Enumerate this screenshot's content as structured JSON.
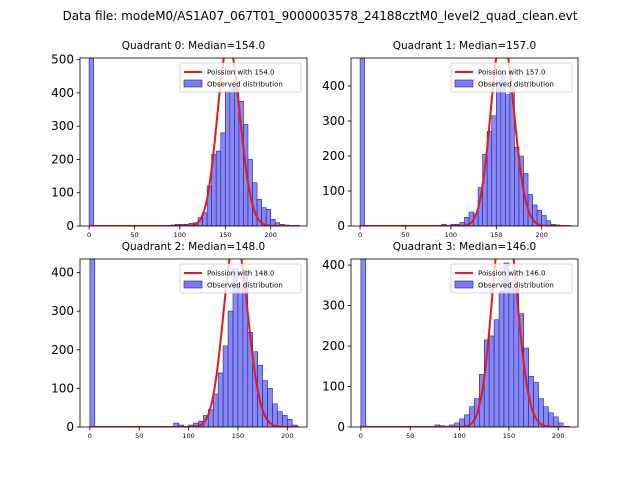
{
  "figure_title": "Data file: modeM0/AS1A07_067T01_9000003578_24188cztM0_level2_quad_clean.evt",
  "colors": {
    "bar_fill": "#7b7bf0",
    "bar_edge": "#1f1fa8",
    "poisson_line": "#e41a1c",
    "axis": "#000000"
  },
  "chart_data": [
    {
      "type": "bar",
      "title": "Quadrant 0: Median=154.0",
      "median": 154.0,
      "xlim": [
        -10,
        240
      ],
      "ylim": [
        0,
        505
      ],
      "xticks": [
        0,
        50,
        100,
        150,
        200
      ],
      "yticks": [
        0,
        100,
        200,
        300,
        400,
        500
      ],
      "legend": {
        "location": "top-right",
        "line_label": "Poission with 154.0",
        "bar_label": "Observed distribution"
      },
      "bin_width": 5,
      "bins": [
        {
          "x": 0,
          "y": 505
        },
        {
          "x": 85,
          "y": 2
        },
        {
          "x": 90,
          "y": 3
        },
        {
          "x": 95,
          "y": 5
        },
        {
          "x": 100,
          "y": 5
        },
        {
          "x": 105,
          "y": 5
        },
        {
          "x": 110,
          "y": 8
        },
        {
          "x": 115,
          "y": 10
        },
        {
          "x": 120,
          "y": 25
        },
        {
          "x": 125,
          "y": 40
        },
        {
          "x": 130,
          "y": 120
        },
        {
          "x": 135,
          "y": 215
        },
        {
          "x": 140,
          "y": 225
        },
        {
          "x": 145,
          "y": 280
        },
        {
          "x": 150,
          "y": 405
        },
        {
          "x": 155,
          "y": 420
        },
        {
          "x": 160,
          "y": 420
        },
        {
          "x": 165,
          "y": 375
        },
        {
          "x": 170,
          "y": 305
        },
        {
          "x": 175,
          "y": 200
        },
        {
          "x": 180,
          "y": 130
        },
        {
          "x": 185,
          "y": 80
        },
        {
          "x": 190,
          "y": 55
        },
        {
          "x": 195,
          "y": 50
        },
        {
          "x": 200,
          "y": 20
        },
        {
          "x": 205,
          "y": 10
        },
        {
          "x": 210,
          "y": 5
        },
        {
          "x": 215,
          "y": 3
        }
      ]
    },
    {
      "type": "bar",
      "title": "Quadrant 1: Median=157.0",
      "median": 157.0,
      "xlim": [
        -10,
        240
      ],
      "ylim": [
        0,
        480
      ],
      "xticks": [
        0,
        50,
        100,
        150,
        200
      ],
      "yticks": [
        0,
        100,
        200,
        300,
        400
      ],
      "legend": {
        "location": "top-right",
        "line_label": "Poission with 157.0",
        "bar_label": "Observed distribution"
      },
      "bin_width": 5,
      "bins": [
        {
          "x": 0,
          "y": 480
        },
        {
          "x": 90,
          "y": 5
        },
        {
          "x": 95,
          "y": 2
        },
        {
          "x": 100,
          "y": 5
        },
        {
          "x": 105,
          "y": 5
        },
        {
          "x": 110,
          "y": 10
        },
        {
          "x": 115,
          "y": 25
        },
        {
          "x": 120,
          "y": 40
        },
        {
          "x": 125,
          "y": 35
        },
        {
          "x": 130,
          "y": 110
        },
        {
          "x": 135,
          "y": 205
        },
        {
          "x": 140,
          "y": 270
        },
        {
          "x": 145,
          "y": 315
        },
        {
          "x": 150,
          "y": 415
        },
        {
          "x": 155,
          "y": 435
        },
        {
          "x": 160,
          "y": 375
        },
        {
          "x": 165,
          "y": 400
        },
        {
          "x": 170,
          "y": 225
        },
        {
          "x": 175,
          "y": 200
        },
        {
          "x": 180,
          "y": 150
        },
        {
          "x": 185,
          "y": 90
        },
        {
          "x": 190,
          "y": 60
        },
        {
          "x": 195,
          "y": 45
        },
        {
          "x": 200,
          "y": 30
        },
        {
          "x": 205,
          "y": 15
        },
        {
          "x": 210,
          "y": 5
        },
        {
          "x": 215,
          "y": 3
        }
      ]
    },
    {
      "type": "bar",
      "title": "Quadrant 2: Median=148.0",
      "median": 148.0,
      "xlim": [
        -10,
        220
      ],
      "ylim": [
        0,
        435
      ],
      "xticks": [
        0,
        50,
        100,
        150,
        200
      ],
      "yticks": [
        0,
        100,
        200,
        300,
        400
      ],
      "legend": {
        "location": "top-right",
        "line_label": "Poission with 148.0",
        "bar_label": "Observed distribution"
      },
      "bin_width": 5,
      "bins": [
        {
          "x": 0,
          "y": 435
        },
        {
          "x": 85,
          "y": 10
        },
        {
          "x": 90,
          "y": 5
        },
        {
          "x": 95,
          "y": 2
        },
        {
          "x": 100,
          "y": 5
        },
        {
          "x": 105,
          "y": 10
        },
        {
          "x": 110,
          "y": 15
        },
        {
          "x": 115,
          "y": 30
        },
        {
          "x": 120,
          "y": 45
        },
        {
          "x": 125,
          "y": 85
        },
        {
          "x": 130,
          "y": 140
        },
        {
          "x": 135,
          "y": 210
        },
        {
          "x": 140,
          "y": 300
        },
        {
          "x": 145,
          "y": 410
        },
        {
          "x": 150,
          "y": 360
        },
        {
          "x": 155,
          "y": 400
        },
        {
          "x": 160,
          "y": 245
        },
        {
          "x": 165,
          "y": 195
        },
        {
          "x": 170,
          "y": 160
        },
        {
          "x": 175,
          "y": 120
        },
        {
          "x": 180,
          "y": 100
        },
        {
          "x": 185,
          "y": 60
        },
        {
          "x": 190,
          "y": 40
        },
        {
          "x": 195,
          "y": 30
        },
        {
          "x": 200,
          "y": 20
        },
        {
          "x": 205,
          "y": 5
        }
      ]
    },
    {
      "type": "bar",
      "title": "Quadrant 3: Median=146.0",
      "median": 146.0,
      "xlim": [
        -10,
        220
      ],
      "ylim": [
        0,
        415
      ],
      "xticks": [
        0,
        50,
        100,
        150,
        200
      ],
      "yticks": [
        0,
        100,
        200,
        300,
        400
      ],
      "legend": {
        "location": "top-right",
        "line_label": "Poission with 146.0",
        "bar_label": "Observed distribution"
      },
      "bin_width": 5,
      "bins": [
        {
          "x": 0,
          "y": 415
        },
        {
          "x": 75,
          "y": 5
        },
        {
          "x": 80,
          "y": 3
        },
        {
          "x": 85,
          "y": 2
        },
        {
          "x": 90,
          "y": 5
        },
        {
          "x": 95,
          "y": 10
        },
        {
          "x": 100,
          "y": 20
        },
        {
          "x": 105,
          "y": 30
        },
        {
          "x": 110,
          "y": 50
        },
        {
          "x": 115,
          "y": 70
        },
        {
          "x": 120,
          "y": 130
        },
        {
          "x": 125,
          "y": 215
        },
        {
          "x": 130,
          "y": 225
        },
        {
          "x": 135,
          "y": 265
        },
        {
          "x": 140,
          "y": 335
        },
        {
          "x": 145,
          "y": 405
        },
        {
          "x": 150,
          "y": 345
        },
        {
          "x": 155,
          "y": 340
        },
        {
          "x": 160,
          "y": 280
        },
        {
          "x": 165,
          "y": 195
        },
        {
          "x": 170,
          "y": 125
        },
        {
          "x": 175,
          "y": 110
        },
        {
          "x": 180,
          "y": 70
        },
        {
          "x": 185,
          "y": 50
        },
        {
          "x": 190,
          "y": 35
        },
        {
          "x": 195,
          "y": 25
        },
        {
          "x": 200,
          "y": 10
        }
      ]
    }
  ]
}
